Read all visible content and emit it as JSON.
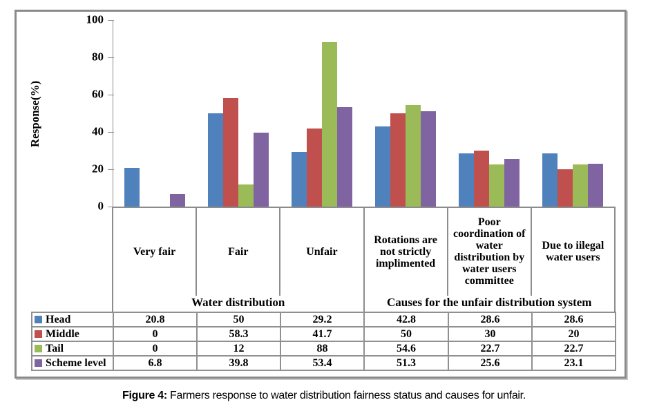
{
  "figure": {
    "caption_label": "Figure 4:",
    "caption_text": " Farmers response to water distribution fairness status and causes for unfair."
  },
  "chart_data": {
    "type": "bar",
    "title": "",
    "xlabel": "",
    "ylabel": "Response(%)",
    "ylim": [
      0,
      100
    ],
    "yticks": [
      0,
      20,
      40,
      60,
      80,
      100
    ],
    "grid": false,
    "legend_position": "table-left",
    "categories": [
      "Very fair",
      "Fair",
      "Unfair",
      "Rotations are not strictly implimented",
      "Poor coordination of water distribution by water users committee",
      "Due to iilegal water users"
    ],
    "category_groups": [
      {
        "label": "Water distribution",
        "start": 0,
        "end": 2
      },
      {
        "label": "Causes for the unfair distribution system",
        "start": 3,
        "end": 5
      }
    ],
    "series": [
      {
        "name": "Head",
        "color": "#4F81BD",
        "values": [
          20.8,
          50,
          29.2,
          42.8,
          28.6,
          28.6
        ]
      },
      {
        "name": "Middle",
        "color": "#C0504D",
        "values": [
          0,
          58.3,
          41.7,
          50,
          30,
          20
        ]
      },
      {
        "name": "Tail",
        "color": "#9BBB59",
        "values": [
          0,
          12,
          88,
          54.6,
          22.7,
          22.7
        ]
      },
      {
        "name": "Scheme level",
        "color": "#8064A2",
        "values": [
          6.8,
          39.8,
          53.4,
          51.3,
          25.6,
          23.1
        ]
      }
    ]
  }
}
